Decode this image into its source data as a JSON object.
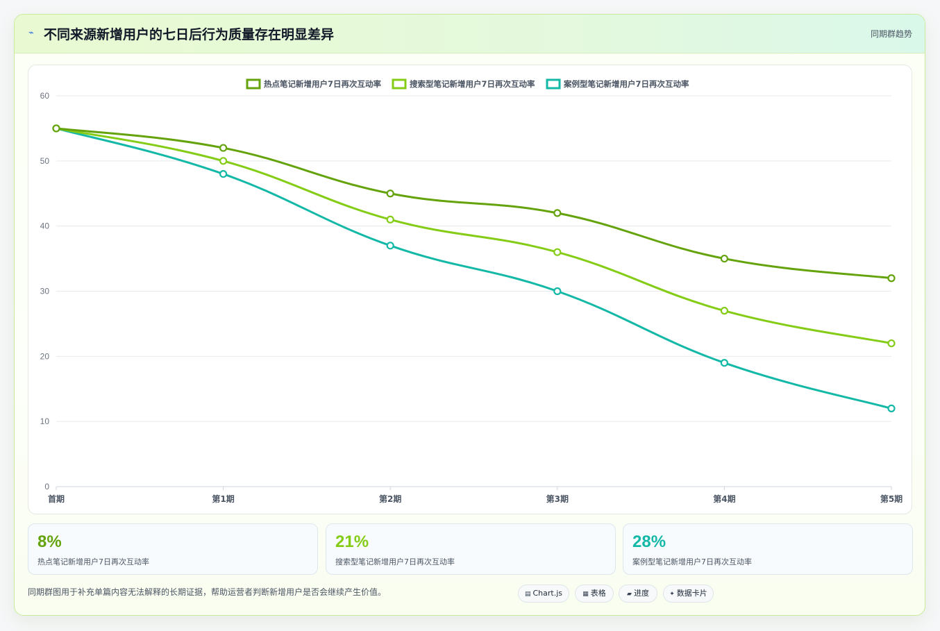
{
  "header": {
    "icon": "lightning-icon",
    "title": "不同来源新增用户的七日后行为质量存在明显差异",
    "tag": "同期群趋势"
  },
  "chart_data": {
    "type": "line",
    "categories": [
      "首期",
      "第1期",
      "第2期",
      "第3期",
      "第4期",
      "第5期"
    ],
    "ylim": [
      0,
      60
    ],
    "yticks": [
      0,
      10,
      20,
      30,
      40,
      50,
      60
    ],
    "grid": true,
    "legend_position": "top-center",
    "series": [
      {
        "name": "热点笔记新增用户7日再次互动率",
        "color": "#65a30d",
        "values": [
          55,
          52,
          45,
          42,
          35,
          32
        ]
      },
      {
        "name": "搜索型笔记新增用户7日再次互动率",
        "color": "#84cc16",
        "values": [
          55,
          50,
          41,
          36,
          27,
          22
        ]
      },
      {
        "name": "案例型笔记新增用户7日再次互动率",
        "color": "#14b8a6",
        "values": [
          55,
          48,
          37,
          30,
          19,
          12
        ]
      }
    ]
  },
  "stats": [
    {
      "value": "8%",
      "label": "热点笔记新增用户7日再次互动率",
      "color": "#65a30d"
    },
    {
      "value": "21%",
      "label": "搜索型笔记新增用户7日再次互动率",
      "color": "#84cc16"
    },
    {
      "value": "28%",
      "label": "案例型笔记新增用户7日再次互动率",
      "color": "#14b8a6"
    }
  ],
  "footnote": "同期群图用于补充单篇内容无法解释的长期证据，帮助运营者判断新增用户是否会继续产生价值。",
  "pills": [
    {
      "icon": "chart-icon",
      "glyph": "▤",
      "label": "Chart.js"
    },
    {
      "icon": "table-icon",
      "glyph": "▦",
      "label": "表格"
    },
    {
      "icon": "progress-icon",
      "glyph": "▰",
      "label": "进度"
    },
    {
      "icon": "card-icon",
      "glyph": "✦",
      "label": "数据卡片"
    }
  ]
}
